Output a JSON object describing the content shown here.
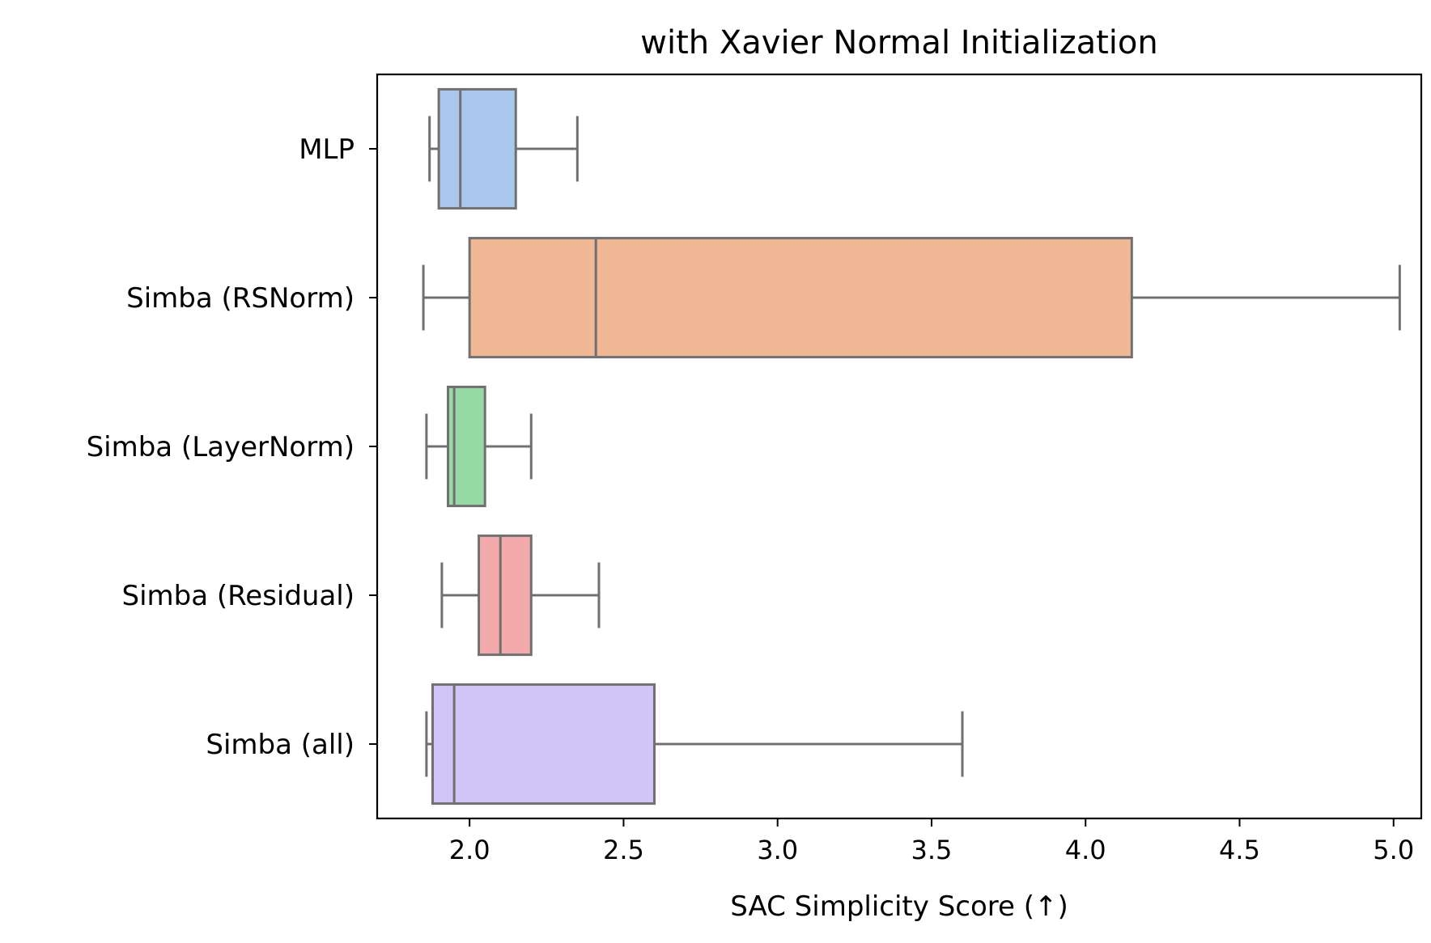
{
  "chart_data": {
    "type": "box",
    "orientation": "horizontal",
    "title": "with Xavier Normal Initialization",
    "xlabel": "SAC Simplicity Score (↑)",
    "ylabel": "",
    "xlim": [
      1.7,
      5.09
    ],
    "xticks": [
      "2.0",
      "2.5",
      "3.0",
      "3.5",
      "4.0",
      "4.5",
      "5.0"
    ],
    "grid": false,
    "legend": "none",
    "line_color": "#707070",
    "categories": [
      {
        "label": "MLP",
        "whisker_low": 1.87,
        "q1": 1.9,
        "median": 1.97,
        "q3": 2.15,
        "whisker_high": 2.35,
        "color": "#aac8ee"
      },
      {
        "label": "Simba (RSNorm)",
        "whisker_low": 1.85,
        "q1": 2.0,
        "median": 2.41,
        "q3": 4.15,
        "whisker_high": 5.02,
        "color": "#f0b894"
      },
      {
        "label": "Simba (LayerNorm)",
        "whisker_low": 1.86,
        "q1": 1.93,
        "median": 1.95,
        "q3": 2.05,
        "whisker_high": 2.2,
        "color": "#96dba5"
      },
      {
        "label": "Simba (Residual)",
        "whisker_low": 1.91,
        "q1": 2.03,
        "median": 2.1,
        "q3": 2.2,
        "whisker_high": 2.42,
        "color": "#f3aaaa"
      },
      {
        "label": "Simba (all)",
        "whisker_low": 1.86,
        "q1": 1.88,
        "median": 1.95,
        "q3": 2.6,
        "whisker_high": 3.6,
        "color": "#d1c4f6"
      }
    ]
  }
}
